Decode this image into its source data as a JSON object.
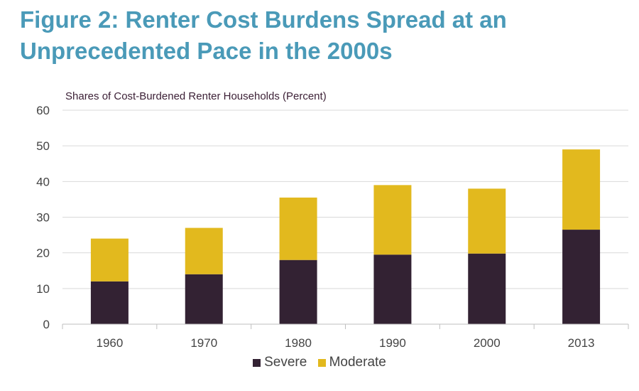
{
  "title_line1": "Figure 2:  Renter Cost Burdens Spread at an",
  "title_line2": "Unprecedented Pace in the 2000s",
  "chart_data": {
    "type": "bar",
    "stacked": true,
    "title": "Figure 2:  Renter Cost Burdens Spread at an Unprecedented Pace in the 2000s",
    "ylabel": "Shares of Cost-Burdened Renter Households (Percent)",
    "xlabel": "",
    "categories": [
      "1960",
      "1970",
      "1980",
      "1990",
      "2000",
      "2013"
    ],
    "series": [
      {
        "name": "Severe",
        "color": "#332233",
        "values": [
          12,
          14,
          18,
          19.5,
          19.8,
          26.5
        ]
      },
      {
        "name": "Moderate",
        "color": "#e2b91e",
        "values": [
          12,
          13,
          17.5,
          19.5,
          18.2,
          22.5
        ]
      }
    ],
    "ylim": [
      0,
      60
    ],
    "yticks": [
      "0",
      "10",
      "20",
      "30",
      "40",
      "50",
      "60"
    ],
    "grid": true,
    "legend": "bottom"
  }
}
